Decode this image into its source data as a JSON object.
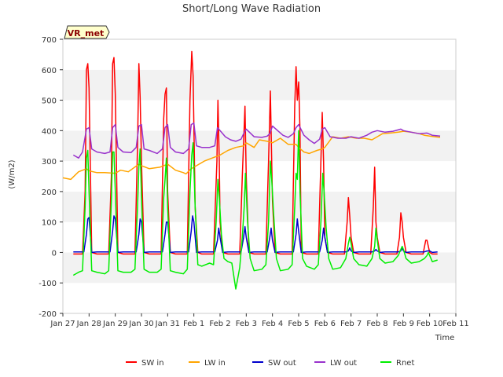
{
  "chart_data": {
    "type": "line",
    "title": "Short/Long Wave Radiation",
    "xlabel": "Time",
    "ylabel": "(W/m2)",
    "badge": "VR_met",
    "ylim": [
      -200,
      700
    ],
    "yticks": [
      -200,
      -100,
      0,
      100,
      200,
      300,
      400,
      500,
      600,
      700
    ],
    "xlim": [
      0,
      15
    ],
    "xticks": [
      {
        "pos": 0,
        "label": "Jan 27"
      },
      {
        "pos": 1,
        "label": "Jan 28"
      },
      {
        "pos": 2,
        "label": "Jan 29"
      },
      {
        "pos": 3,
        "label": "Jan 30"
      },
      {
        "pos": 4,
        "label": "Jan 31"
      },
      {
        "pos": 5,
        "label": "Feb 1"
      },
      {
        "pos": 6,
        "label": "Feb 2"
      },
      {
        "pos": 7,
        "label": "Feb 3"
      },
      {
        "pos": 8,
        "label": "Feb 4"
      },
      {
        "pos": 9,
        "label": "Feb 5"
      },
      {
        "pos": 10,
        "label": "Feb 6"
      },
      {
        "pos": 11,
        "label": "Feb 7"
      },
      {
        "pos": 12,
        "label": "Feb 8"
      },
      {
        "pos": 13,
        "label": "Feb 9"
      },
      {
        "pos": 14,
        "label": "Feb 10"
      },
      {
        "pos": 15,
        "label": "Feb 11"
      }
    ],
    "grid": "horizontal bands",
    "legend_position": "bottom",
    "series": [
      {
        "name": "SW in",
        "color": "#ff0000",
        "x": [
          0.4,
          0.75,
          0.85,
          0.9,
          0.95,
          1.0,
          1.1,
          1.3,
          1.75,
          1.85,
          1.9,
          1.95,
          2.0,
          2.1,
          2.3,
          2.75,
          2.85,
          2.9,
          2.95,
          3.0,
          3.1,
          3.3,
          3.75,
          3.85,
          3.9,
          3.95,
          4.0,
          4.1,
          4.3,
          4.75,
          4.85,
          4.92,
          4.97,
          5.05,
          5.15,
          5.3,
          5.75,
          5.88,
          5.92,
          5.97,
          6.0,
          6.1,
          6.3,
          6.75,
          6.85,
          6.95,
          7.0,
          7.1,
          7.3,
          7.75,
          7.85,
          7.92,
          7.97,
          8.0,
          8.1,
          8.3,
          8.75,
          8.85,
          8.9,
          8.95,
          9.0,
          9.05,
          9.1,
          9.3,
          9.75,
          9.85,
          9.9,
          9.95,
          10.0,
          10.1,
          10.3,
          10.75,
          10.85,
          10.9,
          10.95,
          11.0,
          11.1,
          11.3,
          11.75,
          11.85,
          11.9,
          11.95,
          12.0,
          12.1,
          12.3,
          12.75,
          12.85,
          12.9,
          12.95,
          13.0,
          13.1,
          13.3,
          13.75,
          13.85,
          13.9,
          13.95,
          14.0,
          14.1,
          14.3
        ],
        "y": [
          -5,
          -5,
          200,
          600,
          620,
          540,
          0,
          -5,
          -5,
          250,
          620,
          640,
          520,
          0,
          -5,
          -5,
          350,
          620,
          510,
          300,
          0,
          -5,
          -5,
          440,
          520,
          540,
          200,
          0,
          -5,
          -5,
          500,
          660,
          580,
          150,
          0,
          -5,
          -5,
          300,
          500,
          300,
          100,
          0,
          -5,
          -5,
          250,
          480,
          250,
          0,
          -5,
          -5,
          300,
          530,
          300,
          170,
          0,
          -5,
          -5,
          480,
          610,
          500,
          560,
          400,
          0,
          -5,
          -5,
          300,
          460,
          300,
          50,
          0,
          -5,
          -5,
          100,
          180,
          120,
          50,
          0,
          -5,
          -5,
          150,
          280,
          100,
          50,
          0,
          -5,
          -5,
          50,
          130,
          100,
          50,
          0,
          -5,
          -5,
          40,
          40,
          20,
          0,
          -5,
          -5
        ]
      },
      {
        "name": "LW in",
        "color": "#ffa500",
        "x": [
          0.0,
          0.3,
          0.6,
          0.9,
          1.0,
          1.3,
          1.6,
          2.0,
          2.2,
          2.5,
          2.9,
          3.0,
          3.3,
          3.7,
          4.0,
          4.3,
          4.6,
          4.7,
          4.9,
          5.0,
          5.2,
          5.4,
          5.7,
          6.0,
          6.3,
          6.6,
          6.9,
          7.0,
          7.3,
          7.5,
          7.8,
          8.0,
          8.3,
          8.6,
          8.9,
          9.0,
          9.2,
          9.4,
          9.7,
          9.9,
          10.0,
          10.3,
          10.6,
          10.9,
          11.2,
          11.5,
          11.8,
          12.0,
          12.2,
          12.5,
          12.8,
          13.0,
          13.3,
          13.6,
          13.8,
          14.0,
          14.2,
          14.4
        ],
        "y": [
          245,
          240,
          265,
          275,
          268,
          262,
          262,
          260,
          270,
          265,
          290,
          285,
          275,
          280,
          290,
          270,
          262,
          258,
          275,
          280,
          290,
          300,
          310,
          320,
          335,
          345,
          350,
          360,
          345,
          370,
          365,
          360,
          375,
          355,
          355,
          345,
          330,
          325,
          335,
          340,
          345,
          380,
          375,
          380,
          375,
          375,
          370,
          380,
          390,
          392,
          395,
          398,
          395,
          390,
          385,
          382,
          380,
          378
        ]
      },
      {
        "name": "SW out",
        "color": "#0000cc",
        "x": [
          0.4,
          0.8,
          0.9,
          0.95,
          1.0,
          1.1,
          1.3,
          1.8,
          1.9,
          1.95,
          2.0,
          2.1,
          2.3,
          2.8,
          2.9,
          2.95,
          3.0,
          3.1,
          3.3,
          3.8,
          3.9,
          3.95,
          4.0,
          4.1,
          4.3,
          4.8,
          4.9,
          4.95,
          5.0,
          5.1,
          5.3,
          5.8,
          5.9,
          5.95,
          6.0,
          6.1,
          6.3,
          6.8,
          6.9,
          6.95,
          7.0,
          7.1,
          7.3,
          7.8,
          7.9,
          7.95,
          8.0,
          8.1,
          8.3,
          8.8,
          8.9,
          8.95,
          9.0,
          9.1,
          9.3,
          9.8,
          9.9,
          9.95,
          10.0,
          10.1,
          10.3,
          10.8,
          10.9,
          10.95,
          11.0,
          11.1,
          11.3,
          11.8,
          11.9,
          11.95,
          12.0,
          12.1,
          12.3,
          12.8,
          12.9,
          12.95,
          13.0,
          13.1,
          13.3,
          13.8,
          13.9,
          13.95,
          14.0,
          14.1,
          14.3
        ],
        "y": [
          2,
          2,
          60,
          110,
          115,
          0,
          2,
          2,
          70,
          120,
          110,
          0,
          2,
          2,
          60,
          110,
          100,
          0,
          2,
          2,
          60,
          100,
          100,
          0,
          2,
          2,
          70,
          120,
          100,
          0,
          2,
          2,
          40,
          80,
          50,
          0,
          2,
          2,
          50,
          85,
          50,
          0,
          2,
          2,
          50,
          80,
          40,
          0,
          2,
          2,
          60,
          110,
          70,
          0,
          2,
          2,
          40,
          80,
          50,
          0,
          2,
          2,
          5,
          15,
          5,
          0,
          2,
          2,
          5,
          10,
          5,
          0,
          2,
          2,
          5,
          15,
          5,
          0,
          2,
          2,
          5,
          5,
          5,
          0,
          2
        ]
      },
      {
        "name": "LW out",
        "color": "#9932cc",
        "x": [
          0.4,
          0.6,
          0.75,
          0.9,
          1.0,
          1.1,
          1.3,
          1.6,
          1.8,
          1.9,
          2.0,
          2.1,
          2.3,
          2.6,
          2.8,
          2.9,
          3.0,
          3.1,
          3.3,
          3.6,
          3.8,
          3.9,
          4.0,
          4.1,
          4.3,
          4.6,
          4.8,
          4.9,
          5.0,
          5.1,
          5.3,
          5.6,
          5.8,
          5.9,
          6.0,
          6.2,
          6.4,
          6.6,
          6.8,
          6.9,
          7.0,
          7.3,
          7.6,
          7.8,
          7.9,
          8.0,
          8.2,
          8.4,
          8.6,
          8.8,
          8.9,
          9.0,
          9.2,
          9.4,
          9.6,
          9.8,
          9.9,
          10.0,
          10.2,
          10.5,
          10.8,
          11.0,
          11.3,
          11.6,
          11.8,
          12.0,
          12.3,
          12.6,
          12.9,
          13.0,
          13.3,
          13.6,
          13.9,
          14.1,
          14.4
        ],
        "y": [
          320,
          310,
          330,
          405,
          410,
          340,
          330,
          325,
          330,
          410,
          420,
          345,
          330,
          328,
          345,
          415,
          420,
          340,
          335,
          325,
          340,
          410,
          420,
          345,
          330,
          325,
          340,
          420,
          425,
          350,
          345,
          345,
          350,
          410,
          400,
          380,
          370,
          365,
          372,
          390,
          405,
          380,
          378,
          382,
          390,
          415,
          400,
          385,
          378,
          390,
          410,
          420,
          385,
          370,
          358,
          372,
          405,
          410,
          380,
          375,
          375,
          380,
          375,
          385,
          395,
          400,
          395,
          398,
          405,
          400,
          395,
          390,
          392,
          385,
          382
        ]
      },
      {
        "name": "Rnet",
        "color": "#00ee00",
        "x": [
          0.4,
          0.6,
          0.75,
          0.85,
          0.9,
          0.95,
          1.0,
          1.1,
          1.3,
          1.6,
          1.75,
          1.85,
          1.9,
          1.95,
          2.0,
          2.1,
          2.3,
          2.6,
          2.75,
          2.85,
          2.9,
          2.95,
          3.0,
          3.1,
          3.3,
          3.6,
          3.75,
          3.85,
          3.9,
          3.95,
          4.0,
          4.1,
          4.3,
          4.6,
          4.75,
          4.85,
          4.92,
          4.97,
          5.05,
          5.15,
          5.3,
          5.6,
          5.75,
          5.85,
          5.92,
          5.97,
          6.05,
          6.15,
          6.3,
          6.45,
          6.6,
          6.75,
          6.85,
          6.92,
          6.97,
          7.05,
          7.15,
          7.3,
          7.6,
          7.75,
          7.85,
          7.92,
          7.97,
          8.05,
          8.15,
          8.3,
          8.6,
          8.75,
          8.85,
          8.9,
          8.95,
          9.0,
          9.05,
          9.15,
          9.3,
          9.6,
          9.75,
          9.85,
          9.92,
          9.97,
          10.05,
          10.15,
          10.3,
          10.6,
          10.8,
          10.9,
          10.95,
          11.0,
          11.1,
          11.3,
          11.6,
          11.8,
          11.9,
          11.95,
          12.0,
          12.1,
          12.3,
          12.6,
          12.8,
          12.9,
          12.95,
          13.0,
          13.1,
          13.3,
          13.6,
          13.8,
          13.9,
          13.95,
          14.0,
          14.1,
          14.3
        ],
        "y": [
          -75,
          -65,
          -60,
          150,
          310,
          335,
          200,
          -60,
          -65,
          -70,
          -60,
          170,
          330,
          330,
          200,
          -60,
          -65,
          -65,
          -55,
          150,
          280,
          340,
          180,
          -55,
          -65,
          -65,
          -55,
          180,
          240,
          310,
          150,
          -60,
          -65,
          -70,
          -55,
          200,
          320,
          360,
          150,
          -40,
          -45,
          -35,
          -40,
          100,
          240,
          180,
          60,
          -20,
          -30,
          -35,
          -120,
          -50,
          50,
          150,
          260,
          100,
          -20,
          -60,
          -55,
          -40,
          100,
          300,
          240,
          120,
          -20,
          -60,
          -55,
          -40,
          150,
          260,
          240,
          400,
          200,
          -20,
          -45,
          -55,
          -40,
          100,
          260,
          200,
          80,
          -20,
          -55,
          -50,
          -20,
          30,
          50,
          30,
          -20,
          -40,
          -45,
          -20,
          20,
          80,
          40,
          -20,
          -35,
          -30,
          -10,
          10,
          20,
          10,
          -20,
          -35,
          -30,
          -20,
          -10,
          0,
          -10,
          -30,
          -25
        ]
      }
    ]
  }
}
